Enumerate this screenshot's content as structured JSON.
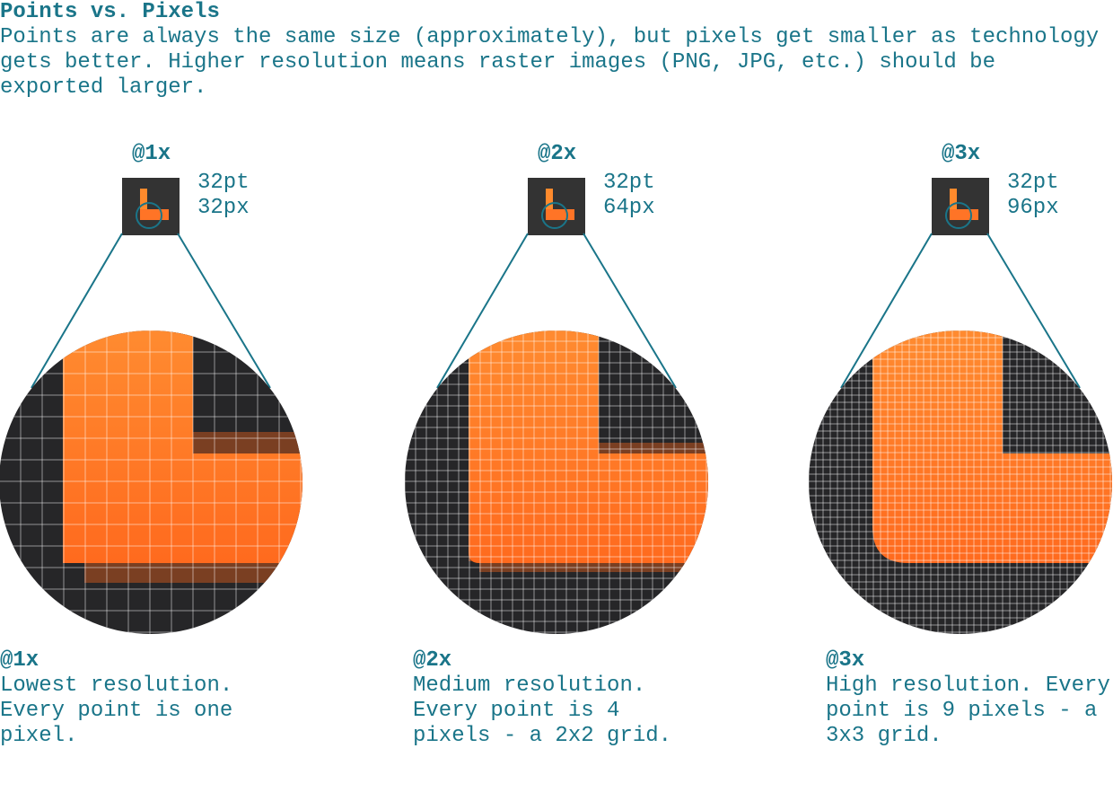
{
  "header": {
    "title": "Points vs. Pixels",
    "description": [
      "Points are always the same size (approximately), but pixels get smaller as technology",
      "gets better. Higher resolution means raster images (PNG, JPG, etc.) should be",
      "exported larger."
    ]
  },
  "panels": [
    {
      "label": "@1x",
      "points": "32pt",
      "pixels": "32px",
      "caption_title": "@1x",
      "caption": [
        "Lowest resolution.",
        "Every point is one",
        "pixel."
      ]
    },
    {
      "label": "@2x",
      "points": "32pt",
      "pixels": "64px",
      "caption_title": "@2x",
      "caption": [
        "Medium resolution.",
        "Every point is 4",
        "pixels - a 2x2 grid."
      ]
    },
    {
      "label": "@3x",
      "points": "32pt",
      "pixels": "96px",
      "caption_title": "@3x",
      "caption": [
        "High resolution. Every",
        "point is 9 pixels - a",
        "3x3 grid."
      ]
    }
  ]
}
